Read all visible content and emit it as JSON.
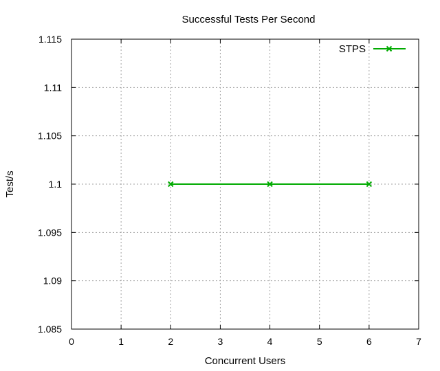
{
  "chart_data": {
    "type": "line",
    "title": "Successful Tests Per Second",
    "xlabel": "Concurrent Users",
    "ylabel": "Test/s",
    "xlim": [
      0,
      7
    ],
    "ylim": [
      1.085,
      1.115
    ],
    "xticks": [
      0,
      1,
      2,
      3,
      4,
      5,
      6,
      7
    ],
    "xtick_labels": [
      "0",
      "1",
      "2",
      "3",
      "4",
      "5",
      "6",
      "7"
    ],
    "yticks": [
      1.085,
      1.09,
      1.095,
      1.1,
      1.105,
      1.11,
      1.115
    ],
    "ytick_labels": [
      "1.085",
      "1.09",
      "1.095",
      "1.1",
      "1.105",
      "1.11",
      "1.115"
    ],
    "grid": true,
    "legend_position": "top-right",
    "series": [
      {
        "name": "STPS",
        "color": "#00aa00",
        "marker": "x",
        "x": [
          2,
          4,
          6
        ],
        "y": [
          1.1,
          1.1,
          1.1
        ]
      }
    ]
  }
}
